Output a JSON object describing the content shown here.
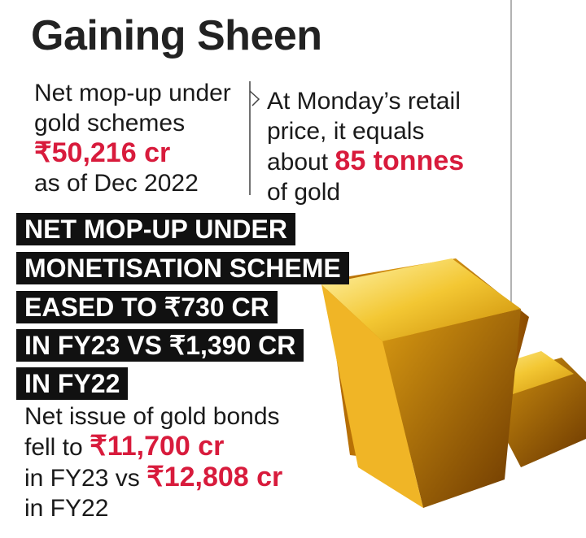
{
  "title": "Gaining Sheen",
  "mop_up_note": {
    "lines": [
      "Net mop-up under",
      "gold schemes"
    ],
    "amount": "₹50,216 cr",
    "date_line": "as of Dec 2022"
  },
  "equivalence_note": {
    "lines": [
      "At Monday’s retail",
      "price, it equals"
    ],
    "prefix": "about",
    "amount": "85 tonnes",
    "last_line": "of gold"
  },
  "headline": {
    "lines": [
      "NET MOP-UP UNDER",
      "MONETISATION SCHEME",
      "EASED TO ₹730 CR",
      "IN FY23 VS ₹1,390 CR",
      "IN FY22"
    ]
  },
  "bonds_note": {
    "first_line": "Net issue of gold bonds",
    "second_prefix": "fell to",
    "second_amount": "₹11,700 cr",
    "third_prefix": "in FY23 vs",
    "third_amount": "₹12,808 cr",
    "last_line": "in FY22"
  }
}
